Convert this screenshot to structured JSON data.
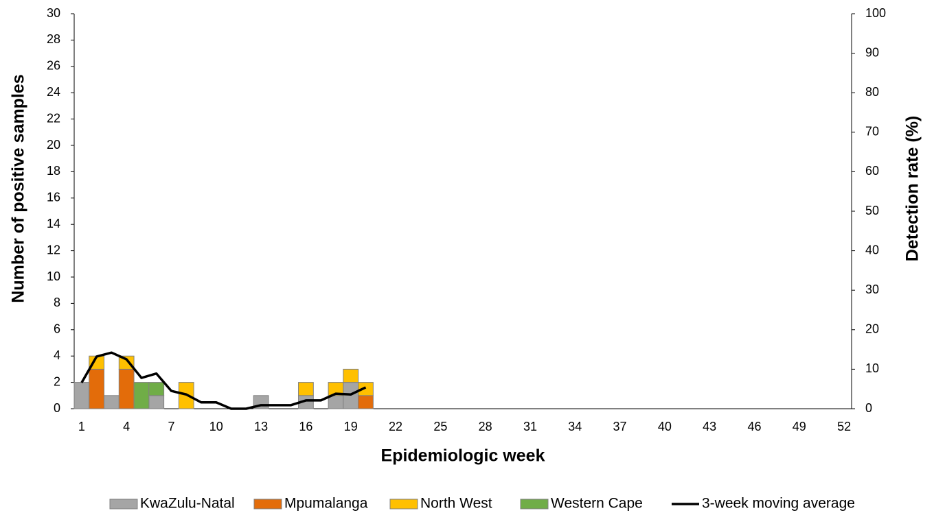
{
  "chart_data": {
    "type": "bar",
    "x_label": "Epidemiologic week",
    "y_label": "Number of  positive samples",
    "y2_label": "Detection rate (%)",
    "categories": [
      1,
      null,
      null,
      4,
      null,
      null,
      7,
      null,
      null,
      10,
      null,
      null,
      13,
      null,
      null,
      16,
      null,
      null,
      19,
      null,
      null,
      22,
      null,
      null,
      25,
      null,
      null,
      28,
      null,
      null,
      31,
      null,
      null,
      34,
      null,
      null,
      37,
      null,
      null,
      40,
      null,
      null,
      43,
      null,
      null,
      46,
      null,
      null,
      49,
      null,
      null,
      52
    ],
    "series": [
      {
        "name": "KwaZulu-Natal",
        "color": "#a5a5a5",
        "values": [
          2,
          0,
          1,
          0,
          0,
          1,
          0,
          0,
          0,
          0,
          0,
          0,
          1,
          0,
          0,
          1,
          0,
          1,
          2,
          0,
          null,
          null,
          null,
          null,
          null,
          null,
          null,
          null,
          null,
          null,
          null,
          null,
          null,
          null,
          null,
          null,
          null,
          null,
          null,
          null,
          null,
          null,
          null,
          null,
          null,
          null,
          null,
          null,
          null,
          null,
          null,
          null
        ]
      },
      {
        "name": "Mpumalanga",
        "color": "#e36c0a",
        "values": [
          0,
          3,
          0,
          3,
          0,
          0,
          0,
          0,
          0,
          0,
          0,
          0,
          0,
          0,
          0,
          0,
          0,
          0,
          0,
          1,
          null,
          null,
          null,
          null,
          null,
          null,
          null,
          null,
          null,
          null,
          null,
          null,
          null,
          null,
          null,
          null,
          null,
          null,
          null,
          null,
          null,
          null,
          null,
          null,
          null,
          null,
          null,
          null,
          null,
          null,
          null,
          null
        ]
      },
      {
        "name": "North West",
        "color": "#ffc000",
        "values": [
          0,
          1,
          0,
          1,
          0,
          0,
          0,
          2,
          0,
          0,
          0,
          0,
          0,
          0,
          0,
          1,
          0,
          1,
          1,
          1,
          null,
          null,
          null,
          null,
          null,
          null,
          null,
          null,
          null,
          null,
          null,
          null,
          null,
          null,
          null,
          null,
          null,
          null,
          null,
          null,
          null,
          null,
          null,
          null,
          null,
          null,
          null,
          null,
          null,
          null,
          null,
          null
        ]
      },
      {
        "name": "Western Cape",
        "color": "#70ad47",
        "values": [
          0,
          0,
          0,
          0,
          2,
          1,
          0,
          0,
          0,
          0,
          0,
          0,
          0,
          0,
          0,
          0,
          0,
          0,
          0,
          0,
          null,
          null,
          null,
          null,
          null,
          null,
          null,
          null,
          null,
          null,
          null,
          null,
          null,
          null,
          null,
          null,
          null,
          null,
          null,
          null,
          null,
          null,
          null,
          null,
          null,
          null,
          null,
          null,
          null,
          null,
          null,
          null
        ]
      },
      {
        "name": "3-week moving average",
        "color": "#000000",
        "type": "line",
        "axis": "y2",
        "values": [
          6.6,
          13.2,
          14.2,
          12.5,
          7.8,
          8.9,
          4.5,
          3.6,
          1.6,
          1.6,
          0,
          0,
          0.9,
          0.9,
          0.9,
          2.1,
          2.1,
          3.8,
          3.6,
          5.4,
          null,
          null,
          null,
          null,
          null,
          null,
          null,
          null,
          null,
          null,
          null,
          null,
          null,
          null,
          null,
          null,
          null,
          null,
          null,
          null,
          null,
          null,
          null,
          null,
          null,
          null,
          null,
          null,
          null,
          null,
          null,
          null
        ]
      }
    ],
    "ylim": [
      0,
      30
    ],
    "yticks": [
      0,
      2,
      4,
      6,
      8,
      10,
      12,
      14,
      16,
      18,
      20,
      22,
      24,
      26,
      28,
      30
    ],
    "y2lim": [
      0,
      100
    ],
    "y2ticks": [
      0,
      10,
      20,
      30,
      40,
      50,
      60,
      70,
      80,
      90,
      100
    ],
    "stacked": true,
    "legend": "bottom"
  }
}
